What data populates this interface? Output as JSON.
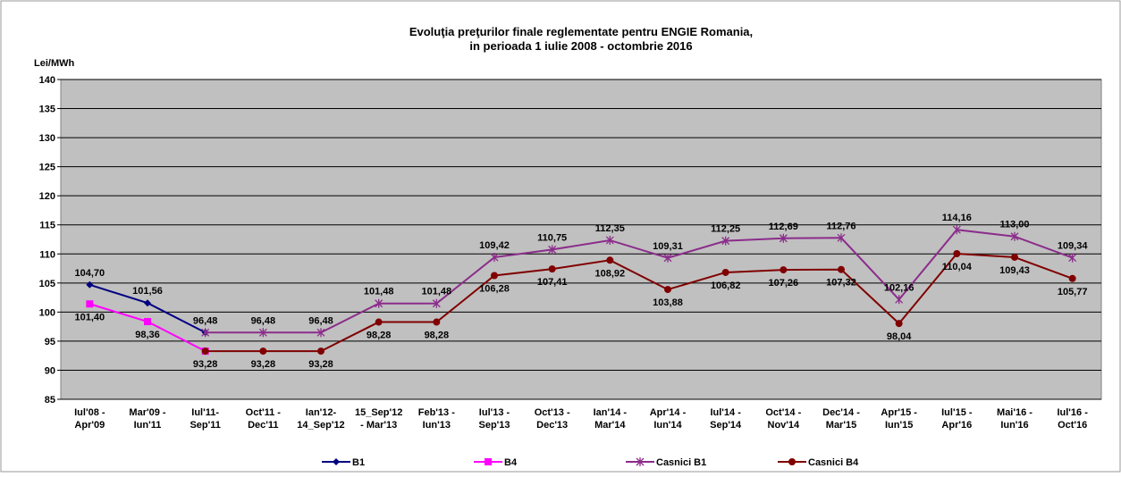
{
  "chart_data": {
    "type": "line",
    "title": "Evoluţia preţurilor finale reglementate pentru ENGIE Romania,",
    "subtitle": "in perioada  1 iulie 2008 -   octombrie 2016",
    "y_label": "Lei/MWh",
    "categories": [
      "Iul'08 -\nApr'09",
      "Mar'09 -\nIun'11",
      "Iul'11-\nSep'11",
      "Oct'11 -\nDec'11",
      "Ian'12-\n14_Sep'12",
      "15_Sep'12\n- Mar'13",
      "Feb'13 -\nIun'13",
      "Iul'13 -\nSep'13",
      "Oct'13 -\nDec'13",
      "Ian'14 -\nMar'14",
      "Apr'14 -\nIun'14",
      "Iul'14 -\nSep'14",
      "Oct'14 -\nNov'14",
      "Dec'14 -\nMar'15",
      "Apr'15 -\nIun'15",
      "Iul'15 -\nApr'16",
      "Mai'16 -\nIun'16",
      "Iul'16 -\nOct'16"
    ],
    "ylim": [
      85,
      140
    ],
    "yticks": [
      85,
      90,
      95,
      100,
      105,
      110,
      115,
      120,
      125,
      130,
      135,
      140
    ],
    "grid": true,
    "legend": "bottom",
    "series": [
      {
        "name": "B1",
        "color": "#000080",
        "marker": "diamond",
        "label_side": "above",
        "values": [
          104.7,
          101.56,
          96.48,
          null,
          null,
          null,
          null,
          null,
          null,
          null,
          null,
          null,
          null,
          null,
          null,
          null,
          null,
          null
        ],
        "value_labels": [
          "104,70",
          "101,56",
          "96,48",
          null,
          null,
          null,
          null,
          null,
          null,
          null,
          null,
          null,
          null,
          null,
          null,
          null,
          null,
          null
        ]
      },
      {
        "name": "B4",
        "color": "#ff00ff",
        "marker": "square",
        "label_side": "below",
        "values": [
          101.4,
          98.36,
          93.28,
          null,
          null,
          null,
          null,
          null,
          null,
          null,
          null,
          null,
          null,
          null,
          null,
          null,
          null,
          null
        ],
        "value_labels": [
          "101,40",
          "98,36",
          "93,28",
          null,
          null,
          null,
          null,
          null,
          null,
          null,
          null,
          null,
          null,
          null,
          null,
          null,
          null,
          null
        ]
      },
      {
        "name": "Casnici B1",
        "color": "#8b2d8b",
        "marker": "star",
        "label_side": "above",
        "values": [
          null,
          null,
          96.48,
          96.48,
          96.48,
          101.48,
          101.48,
          109.42,
          110.75,
          112.35,
          109.31,
          112.25,
          112.69,
          112.76,
          102.16,
          114.16,
          113.0,
          109.34
        ],
        "value_labels": [
          null,
          null,
          null,
          "96,48",
          "96,48",
          "101,48",
          "101,48",
          "109,42",
          "110,75",
          "112,35",
          "109,31",
          "112,25",
          "112,69",
          "112,76",
          "102,16",
          "114,16",
          "113,00",
          "109,34"
        ]
      },
      {
        "name": "Casnici B4",
        "color": "#800000",
        "marker": "circle",
        "label_side": "below",
        "values": [
          null,
          null,
          93.28,
          93.28,
          93.28,
          98.28,
          98.28,
          106.28,
          107.41,
          108.92,
          103.88,
          106.82,
          107.26,
          107.32,
          98.04,
          110.04,
          109.43,
          105.77
        ],
        "value_labels": [
          null,
          null,
          null,
          "93,28",
          "93,28",
          "98,28",
          "98,28",
          "106,28",
          "107,41",
          "108,92",
          "103,88",
          "106,82",
          "107,26",
          "107,32",
          "98,04",
          "110,04",
          "109,43",
          "105,77"
        ]
      }
    ]
  }
}
